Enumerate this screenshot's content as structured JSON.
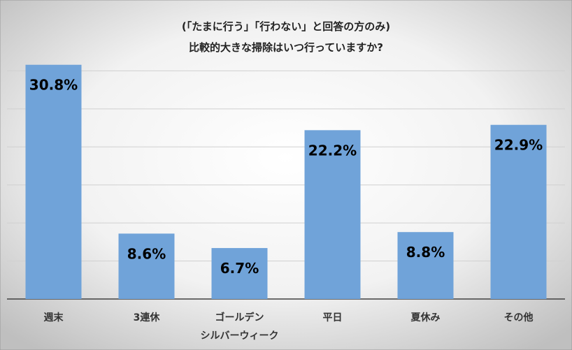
{
  "chart_data": {
    "type": "bar",
    "title": "(「たまに行う」「行わない」と回答の方のみ)\n比較的大きな掃除はいつ行っていますか?",
    "categories": [
      "週末",
      "3連休",
      "ゴールデン\nシルバーウィーク",
      "平日",
      "夏休み",
      "その他"
    ],
    "values": [
      30.8,
      8.6,
      6.7,
      22.2,
      8.8,
      22.9
    ],
    "value_labels": [
      "30.8%",
      "8.6%",
      "6.7%",
      "22.2%",
      "8.8%",
      "22.9%"
    ],
    "color": "#70a3d9",
    "ylim": [
      0,
      35
    ],
    "yticks": [
      0,
      5,
      10,
      15,
      20,
      25,
      30
    ],
    "grid": true
  }
}
